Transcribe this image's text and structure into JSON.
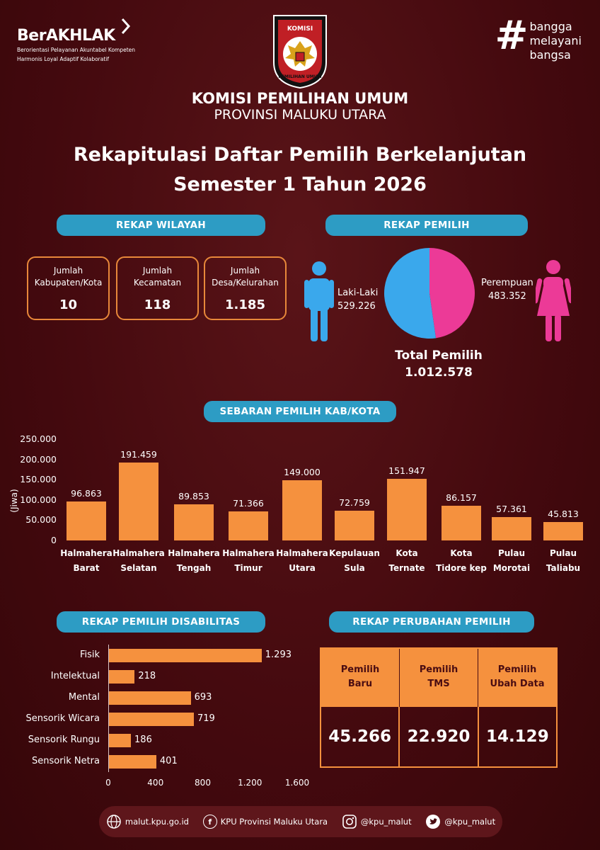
{
  "header": {
    "berakhlak_brand": "BerAKHLAK",
    "berakhlak_tag1": "Berorientasi Pelayanan Akuntabel Kompeten",
    "berakhlak_tag2": "Harmonis Loyal Adaptif Kolaboratif",
    "bangga": [
      "bangga",
      "melayani",
      "bangsa"
    ],
    "logo_text_top": "KOMISI",
    "logo_text_bottom": "PEMILIHAN UMUM",
    "org_title": "KOMISI PEMILIHAN UMUM",
    "org_sub": "PROVINSI MALUKU UTARA",
    "title_line1": "Rekapitulasi Daftar Pemilih Berkelanjutan",
    "title_line2": "Semester 1 Tahun 2026"
  },
  "rekap_wilayah": {
    "heading": "REKAP WILAYAH",
    "items": [
      {
        "label1": "Jumlah",
        "label2": "Kabupaten/Kota",
        "value": "10"
      },
      {
        "label1": "Jumlah",
        "label2": "Kecamatan",
        "value": "118"
      },
      {
        "label1": "Jumlah",
        "label2": "Desa/Kelurahan",
        "value": "1.185"
      }
    ]
  },
  "rekap_pemilih": {
    "heading": "REKAP PEMILIH",
    "male_label": "Laki-Laki",
    "male_value": "529.226",
    "female_label": "Perempuan",
    "female_value": "483.352",
    "total_label": "Total Pemilih",
    "total_value": "1.012.578",
    "colors": {
      "male": "#3aa8ec",
      "female": "#ec3a97"
    }
  },
  "chart_data": [
    {
      "type": "bar",
      "title": "SEBARAN PEMILIH KAB/KOTA",
      "ylabel": "(Jiwa)",
      "ylim": [
        0,
        250000
      ],
      "yticks": [
        "0",
        "50.000",
        "100.000",
        "150.000",
        "200.000",
        "250.000"
      ],
      "categories": [
        [
          "Halmahera",
          "Barat"
        ],
        [
          "Halmahera",
          "Selatan"
        ],
        [
          "Halmahera",
          "Tengah"
        ],
        [
          "Halmahera",
          "Timur"
        ],
        [
          "Halmahera",
          "Utara"
        ],
        [
          "Kepulauan",
          "Sula"
        ],
        [
          "Kota",
          "Ternate"
        ],
        [
          "Kota",
          "Tidore kep"
        ],
        [
          "Pulau",
          "Morotai"
        ],
        [
          "Pulau",
          "Taliabu"
        ]
      ],
      "values": [
        96863,
        191459,
        89853,
        71366,
        149000,
        72759,
        151947,
        86157,
        57361,
        45813
      ],
      "value_labels": [
        "96.863",
        "191.459",
        "89.853",
        "71.366",
        "149.000",
        "72.759",
        "151.947",
        "86.157",
        "57.361",
        "45.813"
      ],
      "color": "#f5913e"
    },
    {
      "type": "bar",
      "orientation": "horizontal",
      "title": "REKAP PEMILIH DISABILITAS",
      "xlim": [
        0,
        1600
      ],
      "xticks": [
        "0",
        "400",
        "800",
        "1.200",
        "1.600"
      ],
      "categories": [
        "Fisik",
        "Intelektual",
        "Mental",
        "Sensorik Wicara",
        "Sensorik Rungu",
        "Sensorik Netra"
      ],
      "values": [
        1293,
        218,
        693,
        719,
        186,
        401
      ],
      "value_labels": [
        "1.293",
        "218",
        "693",
        "719",
        "186",
        "401"
      ],
      "color": "#f5913e"
    }
  ],
  "rekap_perubahan": {
    "heading": "REKAP PERUBAHAN PEMILIH",
    "columns": [
      {
        "line1": "Pemilih",
        "line2": "Baru",
        "value": "45.266"
      },
      {
        "line1": "Pemilih",
        "line2": "TMS",
        "value": "22.920"
      },
      {
        "line1": "Pemilih",
        "line2": "Ubah Data",
        "value": "14.129"
      }
    ]
  },
  "footer": {
    "website": "malut.kpu.go.id",
    "facebook": "KPU Provinsi Maluku Utara",
    "instagram": "@kpu_malut",
    "twitter": "@kpu_malut",
    "icons": [
      "globe-icon",
      "facebook-icon",
      "instagram-icon",
      "twitter-icon"
    ]
  }
}
